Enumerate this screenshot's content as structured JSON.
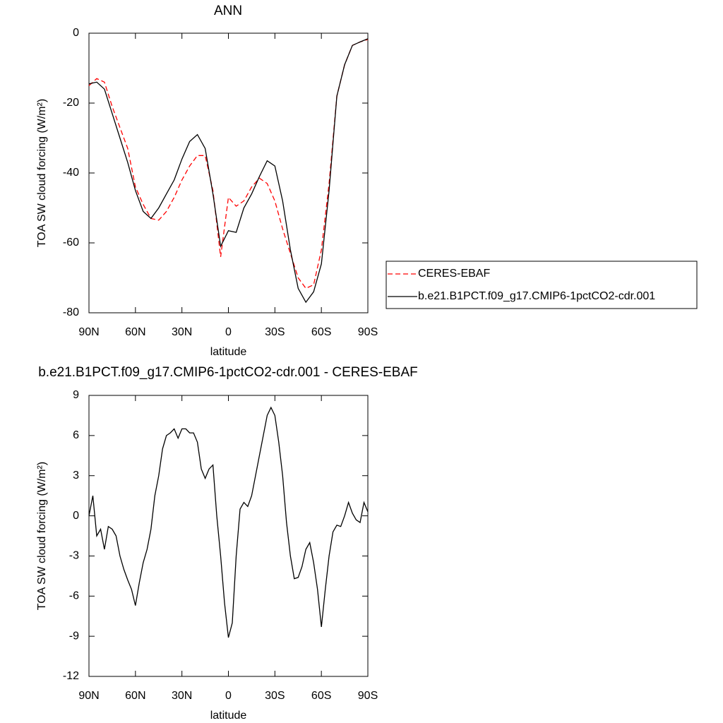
{
  "chart_data": [
    {
      "type": "line",
      "title": "ANN",
      "xlabel": "latitude",
      "ylabel": "TOA SW cloud forcing (W/m²)",
      "x": [
        90,
        85,
        80,
        75,
        70,
        65,
        60,
        55,
        50,
        45,
        40,
        35,
        30,
        25,
        20,
        15,
        10,
        5,
        0,
        -5,
        -10,
        -15,
        -20,
        -25,
        -30,
        -35,
        -40,
        -45,
        -50,
        -55,
        -60,
        -65,
        -70,
        -75,
        -80,
        -85,
        -90
      ],
      "series": [
        {
          "name": "CERES-EBAF",
          "color": "#ff0000",
          "line_style": "dashed",
          "values": [
            -15,
            -13,
            -14,
            -21,
            -27,
            -33,
            -44,
            -49,
            -53,
            -53.5,
            -51,
            -47,
            -42,
            -38,
            -35,
            -35,
            -45,
            -64,
            -47,
            -49.5,
            -48,
            -44,
            -41.5,
            -43,
            -48,
            -56,
            -63,
            -70,
            -73,
            -72,
            -62,
            -43,
            -18,
            -9,
            -3.5,
            -2.5,
            -1.8
          ]
        },
        {
          "name": "b.e21.B1PCT.f09_g17.CMIP6-1pctCO2-cdr.001",
          "color": "#000000",
          "line_style": "solid",
          "values": [
            -14.5,
            -14,
            -16,
            -23,
            -30,
            -37,
            -45,
            -51,
            -53,
            -50,
            -46,
            -42,
            -36,
            -31,
            -29,
            -33,
            -46,
            -61,
            -56.5,
            -57,
            -50,
            -46,
            -41,
            -36.5,
            -38,
            -48,
            -62,
            -73,
            -77,
            -74,
            -66,
            -45,
            -18,
            -9,
            -3.5,
            -2.5,
            -1.6
          ]
        }
      ],
      "xlim": [
        90,
        -90
      ],
      "xticks": [
        {
          "value": 90,
          "label": "90N"
        },
        {
          "value": 60,
          "label": "60N"
        },
        {
          "value": 30,
          "label": "30N"
        },
        0,
        {
          "value": -30,
          "label": "30S"
        },
        {
          "value": -60,
          "label": "60S"
        },
        {
          "value": -90,
          "label": "90S"
        }
      ],
      "ylim": [
        -80,
        0
      ],
      "yticks": [
        0,
        -20,
        -40,
        -60,
        -80
      ],
      "legend": "right"
    },
    {
      "type": "line",
      "title": "b.e21.B1PCT.f09_g17.CMIP6-1pctCO2-cdr.001 - CERES-EBAF",
      "xlabel": "latitude",
      "ylabel": "TOA SW cloud forcing (W/m²)",
      "x": [
        90,
        87.5,
        85,
        82.5,
        80,
        77.5,
        75,
        72.5,
        70,
        67.5,
        65,
        62.5,
        60,
        57.5,
        55,
        52.5,
        50,
        47.5,
        45,
        42.5,
        40,
        37.5,
        35,
        32.5,
        30,
        27.5,
        25,
        22.5,
        20,
        17.5,
        15,
        12.5,
        10,
        7.5,
        5,
        2.5,
        0,
        -2.5,
        -5,
        -7.5,
        -10,
        -12.5,
        -15,
        -17.5,
        -20,
        -22.5,
        -25,
        -27.5,
        -30,
        -32.5,
        -35,
        -37.5,
        -40,
        -42.5,
        -45,
        -47.5,
        -50,
        -52.5,
        -55,
        -57.5,
        -60,
        -62.5,
        -65,
        -67.5,
        -70,
        -72.5,
        -75,
        -77.5,
        -80,
        -82.5,
        -85,
        -87.5,
        -90
      ],
      "series": [
        {
          "name": "b.e21.B1PCT.f09_g17.CMIP6-1pctCO2-cdr.001 - CERES-EBAF",
          "color": "#000000",
          "line_style": "solid",
          "values": [
            0,
            1.5,
            -1.5,
            -1,
            -2.5,
            -0.8,
            -1,
            -1.5,
            -3,
            -4,
            -4.8,
            -5.5,
            -6.7,
            -5,
            -3.5,
            -2.5,
            -1,
            1.5,
            3,
            5,
            6,
            6.2,
            6.5,
            5.8,
            6.5,
            6.5,
            6.2,
            6.2,
            5.5,
            3.5,
            2.8,
            3.5,
            3.8,
            0,
            -3,
            -6.5,
            -9.1,
            -8,
            -3,
            0.5,
            1,
            0.7,
            1.5,
            3,
            4.5,
            6,
            7.5,
            8.1,
            7.5,
            5.5,
            3,
            -0.5,
            -3,
            -4.7,
            -4.6,
            -3.8,
            -2.5,
            -2,
            -3.5,
            -5.5,
            -8.3,
            -5.5,
            -3,
            -1.2,
            -0.7,
            -0.8,
            0,
            1,
            0.2,
            -0.3,
            -0.5,
            1,
            0.3
          ]
        }
      ],
      "xlim": [
        90,
        -90
      ],
      "xticks": [
        {
          "value": 90,
          "label": "90N"
        },
        {
          "value": 60,
          "label": "60N"
        },
        {
          "value": 30,
          "label": "30N"
        },
        0,
        {
          "value": -30,
          "label": "30S"
        },
        {
          "value": -60,
          "label": "60S"
        },
        {
          "value": -90,
          "label": "90S"
        }
      ],
      "ylim": [
        -12,
        9
      ],
      "yticks": [
        9,
        6,
        3,
        0,
        -3,
        -6,
        -9,
        -12
      ]
    }
  ]
}
